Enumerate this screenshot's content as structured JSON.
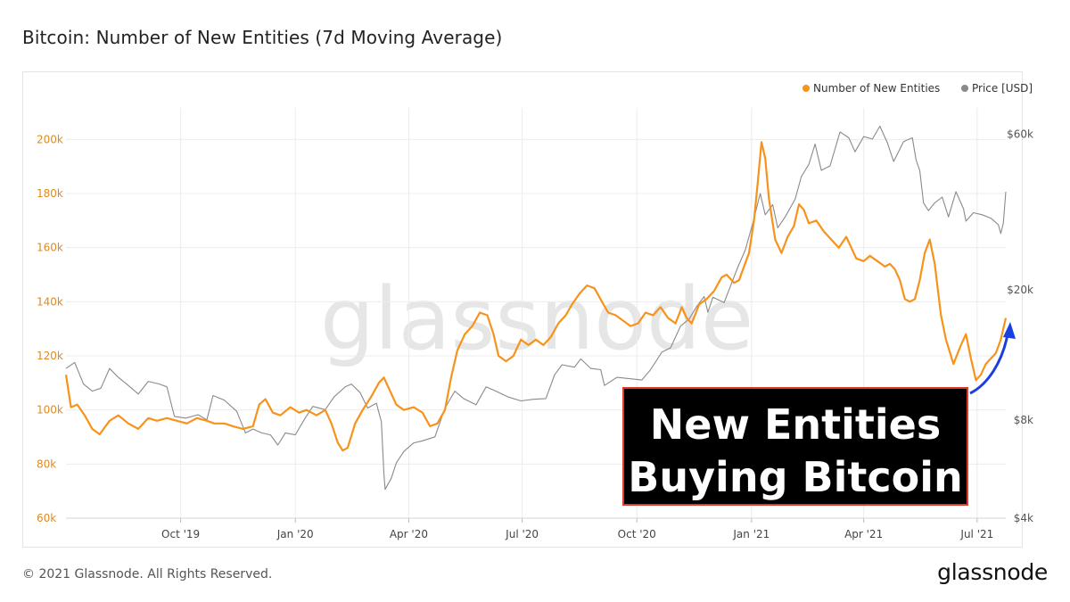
{
  "page": {
    "title": "Bitcoin: Number of New Entities (7d Moving Average)",
    "copyright": "© 2021 Glassnode. All Rights Reserved.",
    "logo": "glassnode",
    "watermark": "glassnode"
  },
  "colors": {
    "entities": "#f7931a",
    "entities_axis": "#e08a1e",
    "price": "#8a8a8a",
    "grid": "#ececec",
    "annotation_bg": "#000000",
    "annotation_border": "#e0382b",
    "annotation_text": "#ffffff",
    "arrow": "#1a3fe0",
    "watermark": "#e6e6e6"
  },
  "annotation": {
    "line1": "New Entities",
    "line2": "Buying Bitcoin",
    "arrow_icon": "curved-up-arrow-icon"
  },
  "chart_data": {
    "type": "line",
    "title": "Bitcoin: Number of New Entities (7d Moving Average)",
    "x_ticks": [
      "Oct '19",
      "Jan '20",
      "Apr '20",
      "Jul '20",
      "Oct '20",
      "Jan '21",
      "Apr '21",
      "Jul '21"
    ],
    "x_range": [
      "2019-07-01",
      "2021-07-24"
    ],
    "legend": {
      "placement": "top-right",
      "entries": [
        "Number of New Entities",
        "Price [USD]"
      ]
    },
    "grid": true,
    "y_left": {
      "ticks": [
        "60k",
        "80k",
        "100k",
        "120k",
        "140k",
        "160k",
        "180k",
        "200k"
      ],
      "range": [
        60000,
        210000
      ]
    },
    "y_right": {
      "scale": "log",
      "ticks": [
        "$4k",
        "$8k",
        "$20k",
        "$60k"
      ],
      "range": [
        4000,
        70000
      ]
    },
    "series": [
      {
        "name": "Number of New Entities",
        "axis": "left",
        "points": [
          [
            "2019-07-01",
            113000
          ],
          [
            "2019-07-05",
            101000
          ],
          [
            "2019-07-10",
            102000
          ],
          [
            "2019-07-16",
            98000
          ],
          [
            "2019-07-22",
            93000
          ],
          [
            "2019-07-28",
            91000
          ],
          [
            "2019-08-05",
            96000
          ],
          [
            "2019-08-12",
            98000
          ],
          [
            "2019-08-20",
            95000
          ],
          [
            "2019-08-28",
            93000
          ],
          [
            "2019-09-05",
            97000
          ],
          [
            "2019-09-12",
            96000
          ],
          [
            "2019-09-20",
            97000
          ],
          [
            "2019-09-28",
            96000
          ],
          [
            "2019-10-06",
            95000
          ],
          [
            "2019-10-14",
            97000
          ],
          [
            "2019-10-22",
            96000
          ],
          [
            "2019-10-28",
            95000
          ],
          [
            "2019-11-05",
            95000
          ],
          [
            "2019-11-12",
            94000
          ],
          [
            "2019-11-20",
            93000
          ],
          [
            "2019-11-28",
            94000
          ],
          [
            "2019-12-03",
            102000
          ],
          [
            "2019-12-08",
            104000
          ],
          [
            "2019-12-14",
            99000
          ],
          [
            "2019-12-20",
            98000
          ],
          [
            "2019-12-28",
            101000
          ],
          [
            "2020-01-04",
            99000
          ],
          [
            "2020-01-10",
            100000
          ],
          [
            "2020-01-18",
            98000
          ],
          [
            "2020-01-25",
            100000
          ],
          [
            "2020-01-30",
            95000
          ],
          [
            "2020-02-04",
            88000
          ],
          [
            "2020-02-08",
            85000
          ],
          [
            "2020-02-12",
            86000
          ],
          [
            "2020-02-18",
            95000
          ],
          [
            "2020-02-24",
            100000
          ],
          [
            "2020-03-02",
            105000
          ],
          [
            "2020-03-08",
            110000
          ],
          [
            "2020-03-12",
            112000
          ],
          [
            "2020-03-16",
            108000
          ],
          [
            "2020-03-22",
            102000
          ],
          [
            "2020-03-28",
            100000
          ],
          [
            "2020-04-05",
            101000
          ],
          [
            "2020-04-12",
            99000
          ],
          [
            "2020-04-18",
            94000
          ],
          [
            "2020-04-24",
            95000
          ],
          [
            "2020-04-30",
            100000
          ],
          [
            "2020-05-05",
            112000
          ],
          [
            "2020-05-10",
            122000
          ],
          [
            "2020-05-16",
            128000
          ],
          [
            "2020-05-22",
            131000
          ],
          [
            "2020-05-28",
            136000
          ],
          [
            "2020-06-03",
            135000
          ],
          [
            "2020-06-08",
            128000
          ],
          [
            "2020-06-12",
            120000
          ],
          [
            "2020-06-18",
            118000
          ],
          [
            "2020-06-24",
            120000
          ],
          [
            "2020-06-30",
            126000
          ],
          [
            "2020-07-06",
            124000
          ],
          [
            "2020-07-12",
            126000
          ],
          [
            "2020-07-18",
            124000
          ],
          [
            "2020-07-24",
            127000
          ],
          [
            "2020-07-30",
            132000
          ],
          [
            "2020-08-05",
            135000
          ],
          [
            "2020-08-10",
            139000
          ],
          [
            "2020-08-16",
            143000
          ],
          [
            "2020-08-22",
            146000
          ],
          [
            "2020-08-28",
            145000
          ],
          [
            "2020-09-03",
            140000
          ],
          [
            "2020-09-08",
            136000
          ],
          [
            "2020-09-14",
            135000
          ],
          [
            "2020-09-20",
            133000
          ],
          [
            "2020-09-26",
            131000
          ],
          [
            "2020-10-02",
            132000
          ],
          [
            "2020-10-08",
            136000
          ],
          [
            "2020-10-14",
            135000
          ],
          [
            "2020-10-20",
            138000
          ],
          [
            "2020-10-26",
            134000
          ],
          [
            "2020-11-01",
            132000
          ],
          [
            "2020-11-06",
            138000
          ],
          [
            "2020-11-10",
            134000
          ],
          [
            "2020-11-14",
            132000
          ],
          [
            "2020-11-20",
            139000
          ],
          [
            "2020-11-26",
            141000
          ],
          [
            "2020-12-02",
            144000
          ],
          [
            "2020-12-08",
            149000
          ],
          [
            "2020-12-12",
            150000
          ],
          [
            "2020-12-18",
            147000
          ],
          [
            "2020-12-22",
            148000
          ],
          [
            "2020-12-26",
            153000
          ],
          [
            "2020-12-30",
            158000
          ],
          [
            "2021-01-03",
            170000
          ],
          [
            "2021-01-06",
            184000
          ],
          [
            "2021-01-09",
            199000
          ],
          [
            "2021-01-12",
            193000
          ],
          [
            "2021-01-15",
            178000
          ],
          [
            "2021-01-20",
            163000
          ],
          [
            "2021-01-25",
            158000
          ],
          [
            "2021-01-30",
            164000
          ],
          [
            "2021-02-04",
            168000
          ],
          [
            "2021-02-08",
            176000
          ],
          [
            "2021-02-12",
            174000
          ],
          [
            "2021-02-16",
            169000
          ],
          [
            "2021-02-22",
            170000
          ],
          [
            "2021-02-28",
            166000
          ],
          [
            "2021-03-06",
            163000
          ],
          [
            "2021-03-12",
            160000
          ],
          [
            "2021-03-18",
            164000
          ],
          [
            "2021-03-22",
            160000
          ],
          [
            "2021-03-26",
            156000
          ],
          [
            "2021-04-01",
            155000
          ],
          [
            "2021-04-06",
            157000
          ],
          [
            "2021-04-12",
            155000
          ],
          [
            "2021-04-18",
            153000
          ],
          [
            "2021-04-22",
            154000
          ],
          [
            "2021-04-26",
            152000
          ],
          [
            "2021-04-30",
            148000
          ],
          [
            "2021-05-04",
            141000
          ],
          [
            "2021-05-08",
            140000
          ],
          [
            "2021-05-12",
            141000
          ],
          [
            "2021-05-16",
            148000
          ],
          [
            "2021-05-20",
            158000
          ],
          [
            "2021-05-24",
            163000
          ],
          [
            "2021-05-28",
            154000
          ],
          [
            "2021-06-02",
            135000
          ],
          [
            "2021-06-06",
            126000
          ],
          [
            "2021-06-12",
            117000
          ],
          [
            "2021-06-18",
            124000
          ],
          [
            "2021-06-22",
            128000
          ],
          [
            "2021-06-26",
            119000
          ],
          [
            "2021-06-30",
            111000
          ],
          [
            "2021-07-04",
            113000
          ],
          [
            "2021-07-08",
            117000
          ],
          [
            "2021-07-12",
            119000
          ],
          [
            "2021-07-16",
            121000
          ],
          [
            "2021-07-20",
            126000
          ],
          [
            "2021-07-24",
            134000
          ]
        ]
      },
      {
        "name": "Price [USD]",
        "axis": "right",
        "points": [
          [
            "2019-07-01",
            11500
          ],
          [
            "2019-07-08",
            12000
          ],
          [
            "2019-07-15",
            10300
          ],
          [
            "2019-07-22",
            9800
          ],
          [
            "2019-07-29",
            10000
          ],
          [
            "2019-08-05",
            11500
          ],
          [
            "2019-08-12",
            10800
          ],
          [
            "2019-08-20",
            10200
          ],
          [
            "2019-08-28",
            9600
          ],
          [
            "2019-09-05",
            10500
          ],
          [
            "2019-09-14",
            10300
          ],
          [
            "2019-09-20",
            10100
          ],
          [
            "2019-09-26",
            8200
          ],
          [
            "2019-10-05",
            8100
          ],
          [
            "2019-10-15",
            8300
          ],
          [
            "2019-10-22",
            8000
          ],
          [
            "2019-10-27",
            9500
          ],
          [
            "2019-11-05",
            9200
          ],
          [
            "2019-11-15",
            8500
          ],
          [
            "2019-11-22",
            7300
          ],
          [
            "2019-11-28",
            7500
          ],
          [
            "2019-12-05",
            7300
          ],
          [
            "2019-12-12",
            7200
          ],
          [
            "2019-12-18",
            6700
          ],
          [
            "2019-12-24",
            7300
          ],
          [
            "2020-01-01",
            7200
          ],
          [
            "2020-01-08",
            8000
          ],
          [
            "2020-01-15",
            8800
          ],
          [
            "2020-01-25",
            8600
          ],
          [
            "2020-02-01",
            9400
          ],
          [
            "2020-02-10",
            10100
          ],
          [
            "2020-02-15",
            10300
          ],
          [
            "2020-02-22",
            9700
          ],
          [
            "2020-02-28",
            8700
          ],
          [
            "2020-03-06",
            9000
          ],
          [
            "2020-03-10",
            7900
          ],
          [
            "2020-03-12",
            5500
          ],
          [
            "2020-03-13",
            4900
          ],
          [
            "2020-03-18",
            5300
          ],
          [
            "2020-03-22",
            5900
          ],
          [
            "2020-03-28",
            6400
          ],
          [
            "2020-04-05",
            6800
          ],
          [
            "2020-04-12",
            6900
          ],
          [
            "2020-04-22",
            7100
          ],
          [
            "2020-04-30",
            8700
          ],
          [
            "2020-05-08",
            9800
          ],
          [
            "2020-05-15",
            9300
          ],
          [
            "2020-05-25",
            8900
          ],
          [
            "2020-06-02",
            10100
          ],
          [
            "2020-06-10",
            9800
          ],
          [
            "2020-06-20",
            9400
          ],
          [
            "2020-06-30",
            9150
          ],
          [
            "2020-07-10",
            9250
          ],
          [
            "2020-07-20",
            9300
          ],
          [
            "2020-07-27",
            11000
          ],
          [
            "2020-08-02",
            11800
          ],
          [
            "2020-08-12",
            11600
          ],
          [
            "2020-08-17",
            12300
          ],
          [
            "2020-08-25",
            11500
          ],
          [
            "2020-09-02",
            11400
          ],
          [
            "2020-09-05",
            10200
          ],
          [
            "2020-09-15",
            10800
          ],
          [
            "2020-09-25",
            10700
          ],
          [
            "2020-10-05",
            10600
          ],
          [
            "2020-10-12",
            11400
          ],
          [
            "2020-10-21",
            12900
          ],
          [
            "2020-10-28",
            13300
          ],
          [
            "2020-11-05",
            15500
          ],
          [
            "2020-11-12",
            16300
          ],
          [
            "2020-11-18",
            17800
          ],
          [
            "2020-11-24",
            19100
          ],
          [
            "2020-11-27",
            17100
          ],
          [
            "2020-12-01",
            19000
          ],
          [
            "2020-12-10",
            18300
          ],
          [
            "2020-12-16",
            21000
          ],
          [
            "2020-12-21",
            23500
          ],
          [
            "2020-12-27",
            26500
          ],
          [
            "2021-01-02",
            32000
          ],
          [
            "2021-01-08",
            39500
          ],
          [
            "2021-01-12",
            34000
          ],
          [
            "2021-01-18",
            36500
          ],
          [
            "2021-01-22",
            31000
          ],
          [
            "2021-01-28",
            33500
          ],
          [
            "2021-02-05",
            38000
          ],
          [
            "2021-02-10",
            44500
          ],
          [
            "2021-02-16",
            48500
          ],
          [
            "2021-02-21",
            56000
          ],
          [
            "2021-02-26",
            46500
          ],
          [
            "2021-03-05",
            48000
          ],
          [
            "2021-03-13",
            61000
          ],
          [
            "2021-03-20",
            58500
          ],
          [
            "2021-03-25",
            53000
          ],
          [
            "2021-04-01",
            59000
          ],
          [
            "2021-04-08",
            58000
          ],
          [
            "2021-04-14",
            63500
          ],
          [
            "2021-04-20",
            56500
          ],
          [
            "2021-04-25",
            49500
          ],
          [
            "2021-05-03",
            57000
          ],
          [
            "2021-05-10",
            58500
          ],
          [
            "2021-05-13",
            50000
          ],
          [
            "2021-05-16",
            46500
          ],
          [
            "2021-05-19",
            37000
          ],
          [
            "2021-05-23",
            35000
          ],
          [
            "2021-05-28",
            37000
          ],
          [
            "2021-06-03",
            38500
          ],
          [
            "2021-06-08",
            33500
          ],
          [
            "2021-06-14",
            40000
          ],
          [
            "2021-06-20",
            35500
          ],
          [
            "2021-06-22",
            32500
          ],
          [
            "2021-06-28",
            34500
          ],
          [
            "2021-07-05",
            34000
          ],
          [
            "2021-07-12",
            33200
          ],
          [
            "2021-07-18",
            31700
          ],
          [
            "2021-07-20",
            29800
          ],
          [
            "2021-07-22",
            32000
          ],
          [
            "2021-07-24",
            40000
          ]
        ]
      }
    ]
  }
}
